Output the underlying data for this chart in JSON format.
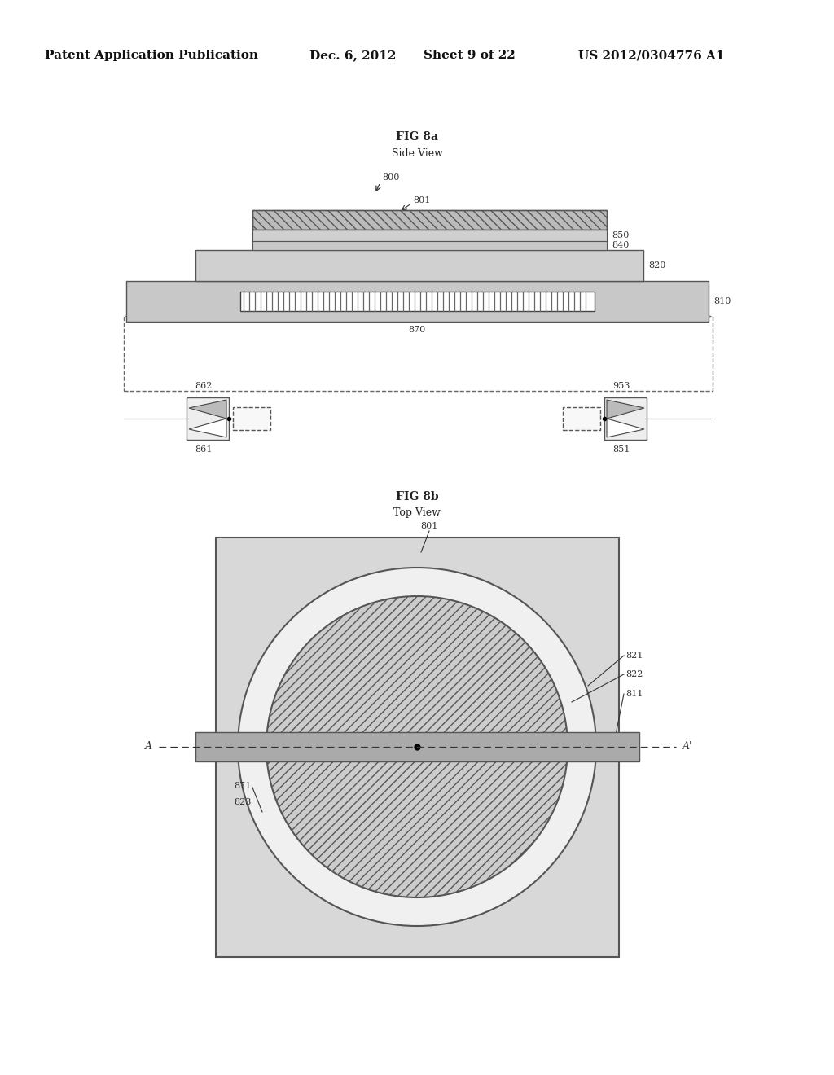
{
  "bg_color": "#ffffff",
  "header_text": "Patent Application Publication",
  "header_date": "Dec. 6, 2012",
  "header_sheet": "Sheet 9 of 22",
  "header_patent": "US 2012/0304776 A1",
  "fig_a_title": "FIG 8a",
  "fig_a_subtitle": "Side View",
  "fig_b_title": "FIG 8b",
  "fig_b_subtitle": "Top View",
  "gray_dark": "#aaaaaa",
  "gray_mid": "#cccccc",
  "gray_light": "#dddddd",
  "gray_xlight": "#eeeeee",
  "edge_color": "#555555",
  "text_color": "#333333",
  "label_fs": 8,
  "header_fs": 11
}
